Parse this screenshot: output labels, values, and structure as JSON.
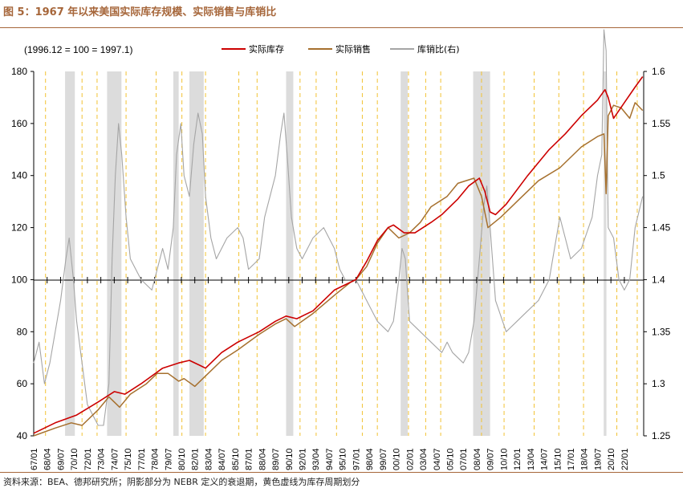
{
  "figure": {
    "title": "图 5：1967 年以来美国实际库存规模、实际销售与库销比",
    "source": "资料来源：BEA、德邦研究所；阴影部分为 NEBR 定义的衰退期，黄色虚线为库存周期划分"
  },
  "chart_data": {
    "type": "line",
    "annotation": "(1996.12 = 100 = 1997.1)",
    "xlim": [
      1967.0,
      2023.8
    ],
    "ylim_left": [
      40,
      180
    ],
    "ylim_right": [
      1.25,
      1.6
    ],
    "yticks_left": [
      "180",
      "160",
      "140",
      "120",
      "100",
      "80",
      "60",
      "40"
    ],
    "yticks_right": [
      "1.6",
      "1.55",
      "1.5",
      "1.45",
      "1.4",
      "1.35",
      "1.3",
      "1.25"
    ],
    "xtick_labels": [
      "67/01",
      "68/04",
      "69/07",
      "70/10",
      "72/01",
      "73/04",
      "74/07",
      "75/10",
      "77/01",
      "78/04",
      "79/07",
      "80/10",
      "82/01",
      "83/04",
      "84/07",
      "85/10",
      "87/01",
      "88/04",
      "89/07",
      "90/10",
      "92/01",
      "93/04",
      "94/07",
      "95/10",
      "97/01",
      "98/04",
      "99/07",
      "00/10",
      "02/01",
      "03/04",
      "04/07",
      "05/10",
      "07/01",
      "08/04",
      "09/07",
      "10/10",
      "12/01",
      "13/04",
      "14/07",
      "15/10",
      "17/01",
      "18/04",
      "19/07",
      "20/10",
      "22/01"
    ],
    "recessions": [
      [
        1969.92,
        1970.83
      ],
      [
        1973.83,
        1975.17
      ],
      [
        1980.0,
        1980.5
      ],
      [
        1981.5,
        1982.83
      ],
      [
        1990.5,
        1991.17
      ],
      [
        2001.17,
        2001.83
      ],
      [
        2007.92,
        2009.5
      ],
      [
        2020.08,
        2020.33
      ]
    ],
    "cycle_lines": [
      1968.1,
      1971.5,
      1972.9,
      1975.6,
      1978.4,
      1980.8,
      1983.0,
      1986.1,
      1987.8,
      1991.8,
      1993.3,
      1995.2,
      1997.6,
      1999.0,
      2001.9,
      2003.5,
      2004.9,
      2008.7,
      2010.8,
      2013.6,
      2015.9,
      2018.2,
      2021.3,
      2023.2
    ],
    "series": [
      {
        "name": "实际库存",
        "axis": "left",
        "color": "#cc0000",
        "x": [
          1967.0,
          1969.0,
          1971.0,
          1973.0,
          1974.5,
          1975.5,
          1977.0,
          1979.0,
          1980.5,
          1981.5,
          1982.5,
          1983.0,
          1984.5,
          1986.0,
          1988.0,
          1989.5,
          1990.5,
          1991.5,
          1993.0,
          1995.0,
          1996.0,
          1997.0,
          1998.0,
          1999.0,
          2000.0,
          2000.5,
          2001.5,
          2002.5,
          2004.0,
          2005.0,
          2006.5,
          2007.5,
          2008.5,
          2009.0,
          2009.5,
          2010.0,
          2011.0,
          2013.0,
          2015.0,
          2016.5,
          2018.0,
          2019.5,
          2020.2,
          2020.5,
          2021.0,
          2022.0,
          2023.0,
          2023.7
        ],
        "y": [
          41,
          45,
          48,
          53,
          57,
          56,
          60,
          66,
          68,
          69,
          67,
          66,
          72,
          76,
          80,
          84,
          86,
          85,
          88,
          96,
          98,
          100,
          107,
          115,
          120,
          121,
          118,
          118,
          122,
          125,
          131,
          136,
          139,
          134,
          126,
          125,
          129,
          140,
          150,
          156,
          163,
          169,
          173,
          170,
          162,
          168,
          174,
          178
        ]
      },
      {
        "name": "实际销售",
        "axis": "left",
        "color": "#a6702e",
        "x": [
          1967.0,
          1969.0,
          1970.5,
          1971.5,
          1973.0,
          1974.0,
          1975.0,
          1976.0,
          1977.5,
          1978.5,
          1979.5,
          1980.5,
          1981.0,
          1982.0,
          1983.0,
          1984.5,
          1986.0,
          1988.0,
          1989.5,
          1990.5,
          1991.3,
          1993.0,
          1995.0,
          1996.5,
          1997.0,
          1998.0,
          1999.0,
          2000.0,
          2001.0,
          2002.0,
          2003.0,
          2004.0,
          2005.5,
          2006.5,
          2008.0,
          2008.7,
          2009.3,
          2010.5,
          2012.0,
          2014.0,
          2016.0,
          2018.0,
          2019.5,
          2020.1,
          2020.3,
          2020.5,
          2021.0,
          2021.7,
          2022.5,
          2023.0,
          2023.7
        ],
        "y": [
          40,
          43,
          45,
          44,
          50,
          55,
          51,
          56,
          60,
          64,
          64,
          61,
          62,
          59,
          63,
          69,
          73,
          79,
          83,
          85,
          82,
          87,
          94,
          99,
          100,
          105,
          114,
          120,
          116,
          118,
          122,
          128,
          132,
          137,
          139,
          132,
          120,
          124,
          130,
          138,
          143,
          151,
          155,
          156,
          133,
          163,
          167,
          166,
          162,
          168,
          165
        ]
      },
      {
        "name": "库销比(右)",
        "axis": "right",
        "color": "#a5a5a5",
        "x": [
          1967.0,
          1967.5,
          1968.0,
          1968.5,
          1969.0,
          1969.5,
          1970.0,
          1970.3,
          1970.7,
          1971.0,
          1971.5,
          1972.0,
          1972.5,
          1973.0,
          1973.5,
          1974.0,
          1974.3,
          1974.6,
          1974.9,
          1975.2,
          1975.6,
          1976.0,
          1977.0,
          1978.0,
          1978.5,
          1979.0,
          1979.5,
          1980.0,
          1980.3,
          1980.7,
          1981.0,
          1981.5,
          1981.9,
          1982.3,
          1982.7,
          1983.0,
          1983.5,
          1984.0,
          1985.0,
          1986.0,
          1986.5,
          1987.0,
          1988.0,
          1988.5,
          1989.0,
          1989.5,
          1990.0,
          1990.3,
          1990.6,
          1991.0,
          1991.5,
          1992.0,
          1993.0,
          1994.0,
          1995.0,
          1995.5,
          1996.0,
          1996.5,
          1997.0,
          1998.0,
          1999.0,
          2000.0,
          2000.5,
          2001.0,
          2001.3,
          2001.6,
          2002.0,
          2003.0,
          2004.0,
          2005.0,
          2005.5,
          2006.0,
          2007.0,
          2007.5,
          2008.0,
          2008.5,
          2008.9,
          2009.2,
          2009.5,
          2010.0,
          2011.0,
          2012.0,
          2013.0,
          2014.0,
          2015.0,
          2015.5,
          2016.0,
          2016.5,
          2017.0,
          2018.0,
          2019.0,
          2019.5,
          2019.9,
          2020.1,
          2020.3,
          2020.5,
          2021.0,
          2021.5,
          2022.0,
          2022.5,
          2023.0,
          2023.7
        ],
        "y": [
          1.32,
          1.34,
          1.3,
          1.32,
          1.35,
          1.38,
          1.42,
          1.44,
          1.4,
          1.36,
          1.32,
          1.28,
          1.27,
          1.26,
          1.26,
          1.3,
          1.42,
          1.5,
          1.55,
          1.52,
          1.46,
          1.42,
          1.4,
          1.39,
          1.41,
          1.43,
          1.41,
          1.45,
          1.52,
          1.55,
          1.5,
          1.48,
          1.53,
          1.56,
          1.54,
          1.48,
          1.44,
          1.42,
          1.44,
          1.45,
          1.44,
          1.41,
          1.42,
          1.46,
          1.48,
          1.5,
          1.54,
          1.56,
          1.52,
          1.46,
          1.43,
          1.42,
          1.44,
          1.45,
          1.43,
          1.41,
          1.4,
          1.4,
          1.4,
          1.38,
          1.36,
          1.35,
          1.36,
          1.4,
          1.43,
          1.42,
          1.36,
          1.35,
          1.34,
          1.33,
          1.34,
          1.33,
          1.32,
          1.33,
          1.36,
          1.42,
          1.47,
          1.49,
          1.45,
          1.38,
          1.35,
          1.36,
          1.37,
          1.38,
          1.4,
          1.43,
          1.46,
          1.44,
          1.42,
          1.43,
          1.46,
          1.5,
          1.52,
          1.64,
          1.62,
          1.45,
          1.44,
          1.4,
          1.39,
          1.4,
          1.45,
          1.48
        ]
      }
    ]
  }
}
